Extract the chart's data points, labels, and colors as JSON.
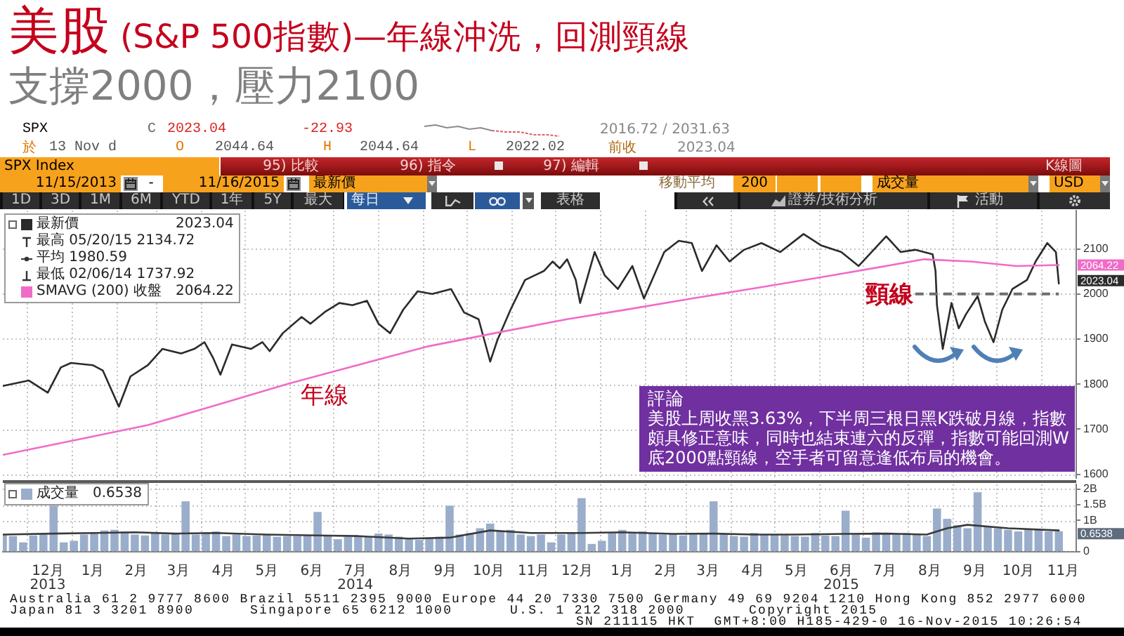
{
  "chart_data": [
    {
      "type": "line",
      "title": "美股 (S&P 500指數)—年線沖洗，回測頸線",
      "subtitle": "支撐2000，壓力2100",
      "series": [
        {
          "name": "最新價",
          "color": "#2b2b2b",
          "x": [
            "2013-11-15",
            "2013-12-03",
            "2013-12-16",
            "2013-12-25",
            "2014-01-01",
            "2014-01-16",
            "2014-01-23",
            "2014-02-03",
            "2014-02-11",
            "2014-02-23",
            "2014-03-05",
            "2014-03-18",
            "2014-03-27",
            "2014-04-03",
            "2014-04-09",
            "2014-04-14",
            "2014-04-22",
            "2014-05-05",
            "2014-05-13",
            "2014-05-18",
            "2014-05-27",
            "2014-06-09",
            "2014-06-15",
            "2014-06-25",
            "2014-07-05",
            "2014-07-14",
            "2014-07-24",
            "2014-08-01",
            "2014-08-09",
            "2014-08-18",
            "2014-08-28",
            "2014-09-07",
            "2014-09-20",
            "2014-09-29",
            "2014-10-09",
            "2014-10-17",
            "2014-10-22",
            "2014-10-31",
            "2014-11-10",
            "2014-11-23",
            "2014-11-29",
            "2014-12-04",
            "2014-12-09",
            "2014-12-15",
            "2014-12-18",
            "2014-12-28",
            "2015-01-04",
            "2015-01-13",
            "2015-01-23",
            "2015-01-31",
            "2015-02-14",
            "2015-02-24",
            "2015-03-05",
            "2015-03-12",
            "2015-03-22",
            "2015-03-31",
            "2015-04-10",
            "2015-04-22",
            "2015-05-05",
            "2015-05-21",
            "2015-06-02",
            "2015-06-16",
            "2015-06-28",
            "2015-07-17",
            "2015-07-27",
            "2015-08-06",
            "2015-08-18",
            "2015-08-20",
            "2015-08-21",
            "2015-08-25",
            "2015-08-31",
            "2015-09-05",
            "2015-09-10",
            "2015-09-18",
            "2015-09-23",
            "2015-09-29",
            "2015-10-05",
            "2015-10-12",
            "2015-10-22",
            "2015-10-28",
            "2015-11-05",
            "2015-11-11",
            "2015-11-13"
          ],
          "values": [
            1796,
            1808,
            1781,
            1837,
            1847,
            1842,
            1830,
            1750,
            1817,
            1842,
            1878,
            1868,
            1878,
            1893,
            1858,
            1821,
            1888,
            1878,
            1893,
            1873,
            1913,
            1949,
            1934,
            1960,
            1980,
            1975,
            1985,
            1934,
            1913,
            1965,
            2006,
            2000,
            2011,
            1959,
            1944,
            1850,
            1898,
            1965,
            2031,
            2051,
            2072,
            2057,
            2077,
            2031,
            1980,
            2093,
            2041,
            2011,
            2062,
            1990,
            2093,
            2118,
            2113,
            2051,
            2108,
            2072,
            2098,
            2113,
            2093,
            2133,
            2108,
            2093,
            2062,
            2128,
            2093,
            2098,
            2088,
            2051,
            1975,
            1878,
            1980,
            1924,
            1955,
            1995,
            1939,
            1893,
            1965,
            2011,
            2031,
            2072,
            2113,
            2093,
            2023.04
          ]
        },
        {
          "name": "SMAVG (200) 收盤",
          "color": "#f06cc8",
          "x": [
            "2013-11-15",
            "2014-01-15",
            "2014-02-23",
            "2014-04-15",
            "2014-05-31",
            "2014-07-15",
            "2014-09-03",
            "2014-10-20",
            "2014-12-09",
            "2015-01-20",
            "2015-03-05",
            "2015-04-20",
            "2015-06-09",
            "2015-07-15",
            "2015-08-12",
            "2015-09-13",
            "2015-10-15",
            "2015-11-13"
          ],
          "values": [
            1643,
            1683,
            1709,
            1757,
            1801,
            1840,
            1883,
            1913,
            1944,
            1966,
            1990,
            2014,
            2041,
            2061,
            2077,
            2072,
            2062,
            2064.22
          ]
        },
        {
          "color": "#6e6e6e",
          "line_style": "dashed",
          "x": [
            "2015-08-06",
            "2015-11-13"
          ],
          "values": [
            2000,
            2000
          ]
        }
      ],
      "xlim": [
        "2013-11-15",
        "2015-11-25"
      ],
      "xticks": [
        {
          "value": "2013-12-01",
          "label": null
        },
        {
          "value": "2014-01-01",
          "label": null
        },
        {
          "value": "2014-02-01",
          "label": null
        },
        {
          "value": "2014-03-01",
          "label": null
        },
        {
          "value": "2014-04-01",
          "label": null
        },
        {
          "value": "2014-05-01",
          "label": null
        },
        {
          "value": "2014-06-01",
          "label": null
        },
        {
          "value": "2014-07-01",
          "label": null
        },
        {
          "value": "2014-08-01",
          "label": null
        },
        {
          "value": "2014-09-01",
          "label": null
        },
        {
          "value": "2014-10-01",
          "label": null
        },
        {
          "value": "2014-11-01",
          "label": null
        },
        {
          "value": "2014-12-01",
          "label": null
        },
        {
          "value": "2015-01-01",
          "label": null
        },
        {
          "value": "2015-02-01",
          "label": null
        },
        {
          "value": "2015-03-01",
          "label": null
        },
        {
          "value": "2015-04-01",
          "label": null
        },
        {
          "value": "2015-05-01",
          "label": null
        },
        {
          "value": "2015-06-01",
          "label": null
        },
        {
          "value": "2015-07-01",
          "label": null
        },
        {
          "value": "2015-08-01",
          "label": null
        },
        {
          "value": "2015-09-01",
          "label": null
        },
        {
          "value": "2015-10-01",
          "label": null
        },
        {
          "value": "2015-11-01",
          "label": null
        }
      ],
      "ylim": [
        1590,
        2185
      ],
      "yticks": [
        1600,
        1700,
        1800,
        1900,
        2000,
        2100
      ],
      "grid": true,
      "legend": "top left",
      "tick_labels": "y",
      "annotations": [
        "年線",
        "頸線",
        "評論",
        "美股上周收黑3.63%，下半周三根日黑K跌破月線，指數頗具修正意味，同時也結束連六的反彈，指數可能回測W底2000點頸線，空手者可留意逢低布局的機會。",
        "最高 05/20/15 2134.72",
        "平均 1980.59",
        "最低 02/06/14 1737.92",
        "SPX",
        "C",
        "2023.04",
        "-22.93",
        "2016.72 / 2031.63",
        "於",
        "13 Nov d",
        "O",
        "2044.64",
        "H",
        "2044.64",
        "L",
        "2022.02",
        "前收",
        "2023.04",
        "SPX Index",
        "95) 比較",
        "96) 指令",
        "97) 編輯",
        "K線圖",
        "11/15/2013",
        "-",
        "11/16/2015",
        "最新價",
        "移動平均",
        "200",
        "成交量",
        "USD",
        "1D",
        "3D",
        "1M",
        "6M",
        "YTD",
        "1年",
        "5Y",
        "最大",
        "每日",
        "表格",
        "活動",
        "2023.04",
        "2064.22",
        {
          "text": "2064.22",
          "x": "2015-11-13",
          "y": 2064.22
        },
        {
          "text": "2023.04",
          "x": "2015-11-13",
          "y": 2023.04
        },
        "證券/技術分析"
      ]
    },
    {
      "type": "bar",
      "series": [
        {
          "name": "成交量",
          "type": "bar",
          "color": "#9aaecb",
          "x": [
            "2013-11-15",
            "2013-11-22",
            "2013-11-29",
            "2013-12-06",
            "2013-12-13",
            "2013-12-20",
            "2013-12-27",
            "2014-01-03",
            "2014-01-10",
            "2014-01-17",
            "2014-01-24",
            "2014-01-31",
            "2014-02-07",
            "2014-02-14",
            "2014-02-21",
            "2014-02-28",
            "2014-03-07",
            "2014-03-14",
            "2014-03-21",
            "2014-03-28",
            "2014-04-04",
            "2014-04-11",
            "2014-04-18",
            "2014-04-25",
            "2014-05-02",
            "2014-05-09",
            "2014-05-16",
            "2014-05-23",
            "2014-05-30",
            "2014-06-06",
            "2014-06-13",
            "2014-06-20",
            "2014-06-27",
            "2014-07-04",
            "2014-07-11",
            "2014-07-18",
            "2014-07-25",
            "2014-08-01",
            "2014-08-08",
            "2014-08-15",
            "2014-08-22",
            "2014-08-29",
            "2014-09-05",
            "2014-09-12",
            "2014-09-19",
            "2014-09-26",
            "2014-10-03",
            "2014-10-10",
            "2014-10-17",
            "2014-10-24",
            "2014-10-31",
            "2014-11-07",
            "2014-11-14",
            "2014-11-21",
            "2014-11-28",
            "2014-12-05",
            "2014-12-12",
            "2014-12-19",
            "2014-12-26",
            "2015-01-02",
            "2015-01-09",
            "2015-01-16",
            "2015-01-23",
            "2015-01-30",
            "2015-02-06",
            "2015-02-13",
            "2015-02-20",
            "2015-02-27",
            "2015-03-06",
            "2015-03-13",
            "2015-03-20",
            "2015-03-27",
            "2015-04-03",
            "2015-04-10",
            "2015-04-17",
            "2015-04-24",
            "2015-05-01",
            "2015-05-08",
            "2015-05-15",
            "2015-05-22",
            "2015-05-29",
            "2015-06-05",
            "2015-06-12",
            "2015-06-19",
            "2015-06-26",
            "2015-07-03",
            "2015-07-10",
            "2015-07-17",
            "2015-07-24",
            "2015-07-31",
            "2015-08-07",
            "2015-08-14",
            "2015-08-21",
            "2015-08-28",
            "2015-09-04",
            "2015-09-11",
            "2015-09-18",
            "2015-09-25",
            "2015-10-02",
            "2015-10-09",
            "2015-10-16",
            "2015-10-23",
            "2015-10-30",
            "2015-11-06",
            "2015-11-13"
          ],
          "values": [
            0.55,
            0.5,
            0.3,
            0.52,
            0.55,
            1.47,
            0.3,
            0.35,
            0.55,
            0.6,
            0.68,
            0.7,
            0.65,
            0.55,
            0.52,
            0.6,
            0.55,
            0.58,
            1.61,
            0.55,
            0.62,
            0.65,
            0.5,
            0.55,
            0.5,
            0.52,
            0.55,
            0.48,
            0.5,
            0.5,
            0.52,
            1.27,
            0.5,
            0.4,
            0.48,
            0.52,
            0.48,
            0.58,
            0.55,
            0.48,
            0.4,
            0.38,
            0.45,
            0.48,
            1.47,
            0.55,
            0.6,
            0.75,
            0.9,
            0.65,
            0.7,
            0.55,
            0.5,
            0.55,
            0.3,
            0.55,
            0.62,
            1.71,
            0.25,
            0.35,
            0.6,
            0.7,
            0.62,
            0.65,
            0.6,
            0.55,
            0.58,
            0.52,
            0.55,
            0.6,
            1.61,
            0.55,
            0.5,
            0.48,
            0.6,
            0.55,
            0.55,
            0.52,
            0.5,
            0.48,
            0.6,
            0.52,
            0.5,
            1.31,
            0.55,
            0.45,
            0.62,
            0.55,
            0.58,
            0.6,
            0.55,
            0.5,
            1.38,
            1.05,
            0.85,
            0.75,
            1.9,
            0.8,
            0.75,
            0.7,
            0.65,
            0.72,
            0.7,
            0.65,
            0.6538
          ]
        },
        {
          "type": "line",
          "color": "#3a3a3a",
          "x": [
            "2013-11-15",
            "2013-12-20",
            "2014-01-17",
            "2014-02-14",
            "2014-03-14",
            "2014-04-11",
            "2014-05-16",
            "2014-06-20",
            "2014-07-18",
            "2014-08-22",
            "2014-09-19",
            "2014-10-17",
            "2014-11-14",
            "2014-12-19",
            "2015-01-16",
            "2015-02-20",
            "2015-03-20",
            "2015-04-17",
            "2015-05-15",
            "2015-06-19",
            "2015-07-17",
            "2015-08-14",
            "2015-08-28",
            "2015-09-11",
            "2015-10-09",
            "2015-11-13"
          ],
          "values": [
            0.55,
            0.58,
            0.6,
            0.62,
            0.58,
            0.6,
            0.55,
            0.52,
            0.5,
            0.42,
            0.45,
            0.68,
            0.6,
            0.6,
            0.62,
            0.57,
            0.58,
            0.55,
            0.55,
            0.57,
            0.58,
            0.55,
            0.75,
            0.86,
            0.75,
            0.68
          ]
        }
      ],
      "xlim": [
        "2013-11-15",
        "2015-11-25"
      ],
      "xticks": [
        {
          "value": "2013-12-01",
          "label": null
        },
        {
          "value": "2013-12-16",
          "label": "12月\n2013"
        },
        {
          "value": "2014-01-01",
          "label": null
        },
        {
          "value": "2014-01-16",
          "label": "1月"
        },
        {
          "value": "2014-02-01",
          "label": null
        },
        {
          "value": "2014-02-15",
          "label": "2月"
        },
        {
          "value": "2014-03-01",
          "label": null
        },
        {
          "value": "2014-03-16",
          "label": "3月"
        },
        {
          "value": "2014-04-01",
          "label": null
        },
        {
          "value": "2014-04-16",
          "label": "4月"
        },
        {
          "value": "2014-05-01",
          "label": null
        },
        {
          "value": "2014-05-16",
          "label": "5月"
        },
        {
          "value": "2014-06-01",
          "label": null
        },
        {
          "value": "2014-06-16",
          "label": "6月"
        },
        {
          "value": "2014-07-01",
          "label": null
        },
        {
          "value": "2014-07-16",
          "label": "7月\n2014"
        },
        {
          "value": "2014-08-01",
          "label": null
        },
        {
          "value": "2014-08-16",
          "label": "8月"
        },
        {
          "value": "2014-09-01",
          "label": null
        },
        {
          "value": "2014-09-16",
          "label": "9月"
        },
        {
          "value": "2014-10-01",
          "label": null
        },
        {
          "value": "2014-10-16",
          "label": "10月"
        },
        {
          "value": "2014-11-01",
          "label": null
        },
        {
          "value": "2014-11-16",
          "label": "11月"
        },
        {
          "value": "2014-12-01",
          "label": null
        },
        {
          "value": "2014-12-16",
          "label": "12月"
        },
        {
          "value": "2015-01-01",
          "label": null
        },
        {
          "value": "2015-01-16",
          "label": "1月"
        },
        {
          "value": "2015-02-01",
          "label": null
        },
        {
          "value": "2015-02-15",
          "label": "2月"
        },
        {
          "value": "2015-03-01",
          "label": null
        },
        {
          "value": "2015-03-16",
          "label": "3月"
        },
        {
          "value": "2015-04-01",
          "label": null
        },
        {
          "value": "2015-04-16",
          "label": "4月"
        },
        {
          "value": "2015-05-01",
          "label": null
        },
        {
          "value": "2015-05-16",
          "label": "5月"
        },
        {
          "value": "2015-06-01",
          "label": null
        },
        {
          "value": "2015-06-16",
          "label": "6月\n2015"
        },
        {
          "value": "2015-07-01",
          "label": null
        },
        {
          "value": "2015-07-16",
          "label": "7月"
        },
        {
          "value": "2015-08-01",
          "label": null
        },
        {
          "value": "2015-08-16",
          "label": "8月"
        },
        {
          "value": "2015-09-01",
          "label": null
        },
        {
          "value": "2015-09-16",
          "label": "9月"
        },
        {
          "value": "2015-10-01",
          "label": null
        },
        {
          "value": "2015-10-16",
          "label": "10月"
        },
        {
          "value": "2015-11-01",
          "label": null
        },
        {
          "value": "2015-11-16",
          "label": "11月"
        }
      ],
      "ylim": [
        0,
        2.15
      ],
      "yticks": [
        0,
        {
          "value": 1,
          "label": "1B"
        },
        {
          "value": 1.5,
          "label": "1.5B"
        },
        {
          "value": 2,
          "label": "2B"
        }
      ],
      "grid": true,
      "legend": "top left",
      "annotations": [
        "Australia 61 2 9777 8600 Brazil 5511 2395 9000 Europe 44 20 7330 7500 Germany 49 69 9204 1210 Hong Kong 852 2977 6000",
        "Japan 81 3 3201 8900",
        "Singapore 65 6212 1000",
        "U.S. 1 212 318 2000",
        "Copyright 2015",
        "SN 211115 HKT  GMT+8:00 H185-429-0 16-Nov-2015 10:26:54",
        "0.6538",
        {
          "text": "0.6538",
          "x": "2015-11-13",
          "y": 0.6538
        }
      ]
    }
  ]
}
